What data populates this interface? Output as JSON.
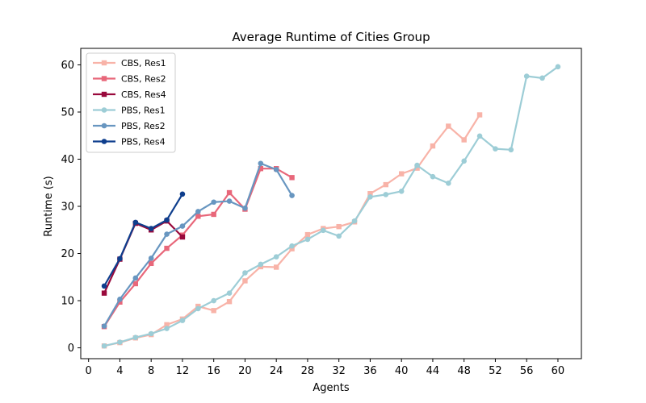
{
  "chart_data": {
    "type": "line",
    "title": "Average Runtime of Cities Group",
    "xlabel": "Agents",
    "ylabel": "Runtime (s)",
    "xlim": [
      -1,
      63
    ],
    "ylim": [
      -2.3,
      63.5
    ],
    "xticks": [
      0,
      4,
      8,
      12,
      16,
      20,
      24,
      28,
      32,
      36,
      40,
      44,
      48,
      52,
      56,
      60
    ],
    "yticks": [
      0,
      10,
      20,
      30,
      40,
      50,
      60
    ],
    "grid": false,
    "legend_position": "upper-left",
    "series": [
      {
        "name": "CBS, Res1",
        "color": "#f8b3a8",
        "marker": "square",
        "x": [
          2,
          4,
          6,
          8,
          10,
          12,
          14,
          16,
          18,
          20,
          22,
          24,
          26,
          28,
          30,
          32,
          34,
          36,
          38,
          40,
          42,
          44,
          46,
          48,
          50
        ],
        "y": [
          0.4,
          1.1,
          2.1,
          2.8,
          4.9,
          6.1,
          8.8,
          7.9,
          9.8,
          14.2,
          17.2,
          17.1,
          21.0,
          24.0,
          25.3,
          25.7,
          26.7,
          32.7,
          34.6,
          36.9,
          38.1,
          42.8,
          47.0,
          44.1,
          49.4
        ]
      },
      {
        "name": "CBS, Res2",
        "color": "#e8677a",
        "marker": "square",
        "x": [
          2,
          4,
          6,
          8,
          10,
          12,
          14,
          16,
          18,
          20,
          22,
          24,
          26
        ],
        "y": [
          4.5,
          9.7,
          13.6,
          17.9,
          21.1,
          23.9,
          27.9,
          28.3,
          32.9,
          29.4,
          38.0,
          38.0,
          36.1
        ]
      },
      {
        "name": "CBS, Res4",
        "color": "#99093c",
        "marker": "square",
        "x": [
          2,
          4,
          6,
          8,
          10,
          12
        ],
        "y": [
          11.6,
          18.8,
          26.4,
          25.0,
          26.9,
          23.5
        ]
      },
      {
        "name": "PBS, Res1",
        "color": "#9dcdd6",
        "marker": "circle",
        "x": [
          2,
          4,
          6,
          8,
          10,
          12,
          14,
          16,
          18,
          20,
          22,
          24,
          26,
          28,
          30,
          32,
          34,
          36,
          38,
          40,
          42,
          44,
          46,
          48,
          50,
          52,
          54,
          56,
          58,
          60
        ],
        "y": [
          0.4,
          1.2,
          2.2,
          3.0,
          4.1,
          5.8,
          8.3,
          10.0,
          11.6,
          15.9,
          17.7,
          19.3,
          21.6,
          23.0,
          24.9,
          23.7,
          26.9,
          32.0,
          32.5,
          33.2,
          38.7,
          36.3,
          34.9,
          39.6,
          44.9,
          42.2,
          42.0,
          57.6,
          57.2,
          59.6
        ]
      },
      {
        "name": "PBS, Res2",
        "color": "#6896c0",
        "marker": "circle",
        "x": [
          2,
          4,
          6,
          8,
          10,
          12,
          14,
          16,
          18,
          20,
          22,
          24,
          26
        ],
        "y": [
          4.6,
          10.3,
          14.8,
          19.0,
          24.1,
          25.8,
          28.9,
          30.9,
          31.1,
          29.6,
          39.1,
          37.8,
          32.3
        ]
      },
      {
        "name": "PBS, Res4",
        "color": "#0e3e8d",
        "marker": "circle",
        "x": [
          2,
          4,
          6,
          8,
          10,
          12
        ],
        "y": [
          13.1,
          18.9,
          26.6,
          25.3,
          27.1,
          32.6
        ]
      }
    ]
  }
}
